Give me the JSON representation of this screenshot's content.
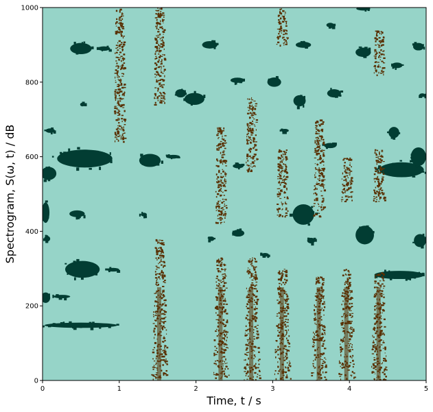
{
  "chart_data": {
    "type": "heatmap",
    "xlabel": "Time, t / s",
    "ylabel": "Spectrogram, S(ω, t) / dB",
    "xlim": [
      0,
      5
    ],
    "ylim": [
      0,
      1000
    ],
    "x_ticks": [
      {
        "value": 0,
        "label": "0"
      },
      {
        "value": 1,
        "label": "1"
      },
      {
        "value": 2,
        "label": "2"
      },
      {
        "value": 3,
        "label": "3"
      },
      {
        "value": 4,
        "label": "4"
      },
      {
        "value": 5,
        "label": "5"
      }
    ],
    "y_ticks": [
      {
        "value": 0,
        "label": "0"
      },
      {
        "value": 200,
        "label": "200"
      },
      {
        "value": 400,
        "label": "400"
      },
      {
        "value": 600,
        "label": "600"
      },
      {
        "value": 800,
        "label": "800"
      },
      {
        "value": 1000,
        "label": "1000"
      }
    ],
    "grid": false,
    "colors": {
      "background": "#96d4c8",
      "low": "#023d33",
      "high": "#593105"
    },
    "high_bands": [
      {
        "x": 1.0,
        "y0": 640,
        "y1": 1000
      },
      {
        "x": 1.52,
        "y0": 0,
        "y1": 380
      },
      {
        "x": 1.52,
        "y0": 740,
        "y1": 1000
      },
      {
        "x": 2.32,
        "y0": 0,
        "y1": 330
      },
      {
        "x": 2.32,
        "y0": 420,
        "y1": 680
      },
      {
        "x": 2.72,
        "y0": 0,
        "y1": 330
      },
      {
        "x": 2.72,
        "y0": 560,
        "y1": 760
      },
      {
        "x": 3.12,
        "y0": 0,
        "y1": 300
      },
      {
        "x": 3.12,
        "y0": 440,
        "y1": 620
      },
      {
        "x": 3.12,
        "y0": 900,
        "y1": 1000
      },
      {
        "x": 3.6,
        "y0": 0,
        "y1": 280
      },
      {
        "x": 3.6,
        "y0": 440,
        "y1": 700
      },
      {
        "x": 3.96,
        "y0": 0,
        "y1": 300
      },
      {
        "x": 3.96,
        "y0": 480,
        "y1": 600
      },
      {
        "x": 4.38,
        "y0": 0,
        "y1": 290
      },
      {
        "x": 4.38,
        "y0": 480,
        "y1": 620
      },
      {
        "x": 4.38,
        "y0": 820,
        "y1": 940
      }
    ],
    "low_blobs": [
      {
        "x": 0.5,
        "y": 148,
        "w": 0.95,
        "h": 14
      },
      {
        "x": 0.04,
        "y": 222,
        "w": 0.12,
        "h": 28
      },
      {
        "x": 0.25,
        "y": 225,
        "w": 0.22,
        "h": 8
      },
      {
        "x": 0.52,
        "y": 298,
        "w": 0.45,
        "h": 45
      },
      {
        "x": 0.92,
        "y": 297,
        "w": 0.16,
        "h": 10
      },
      {
        "x": 0.04,
        "y": 450,
        "w": 0.1,
        "h": 55
      },
      {
        "x": 0.45,
        "y": 447,
        "w": 0.2,
        "h": 18
      },
      {
        "x": 0.06,
        "y": 380,
        "w": 0.08,
        "h": 15
      },
      {
        "x": 0.55,
        "y": 595,
        "w": 0.72,
        "h": 48
      },
      {
        "x": 0.08,
        "y": 555,
        "w": 0.2,
        "h": 35
      },
      {
        "x": 0.1,
        "y": 670,
        "w": 0.12,
        "h": 12
      },
      {
        "x": 0.5,
        "y": 890,
        "w": 0.28,
        "h": 30
      },
      {
        "x": 0.8,
        "y": 890,
        "w": 0.16,
        "h": 12
      },
      {
        "x": 0.52,
        "y": 740,
        "w": 0.06,
        "h": 10
      },
      {
        "x": 1.4,
        "y": 590,
        "w": 0.28,
        "h": 35
      },
      {
        "x": 1.7,
        "y": 600,
        "w": 0.18,
        "h": 10
      },
      {
        "x": 1.32,
        "y": 445,
        "w": 0.08,
        "h": 10
      },
      {
        "x": 1.8,
        "y": 770,
        "w": 0.14,
        "h": 22
      },
      {
        "x": 1.98,
        "y": 755,
        "w": 0.26,
        "h": 32
      },
      {
        "x": 2.18,
        "y": 900,
        "w": 0.2,
        "h": 20
      },
      {
        "x": 2.54,
        "y": 805,
        "w": 0.18,
        "h": 14
      },
      {
        "x": 2.55,
        "y": 575,
        "w": 0.14,
        "h": 12
      },
      {
        "x": 2.55,
        "y": 395,
        "w": 0.16,
        "h": 18
      },
      {
        "x": 2.2,
        "y": 380,
        "w": 0.08,
        "h": 12
      },
      {
        "x": 2.9,
        "y": 337,
        "w": 0.1,
        "h": 10
      },
      {
        "x": 3.02,
        "y": 800,
        "w": 0.18,
        "h": 25
      },
      {
        "x": 3.35,
        "y": 750,
        "w": 0.16,
        "h": 30
      },
      {
        "x": 3.4,
        "y": 900,
        "w": 0.2,
        "h": 16
      },
      {
        "x": 3.16,
        "y": 670,
        "w": 0.1,
        "h": 8
      },
      {
        "x": 3.4,
        "y": 445,
        "w": 0.28,
        "h": 55
      },
      {
        "x": 3.5,
        "y": 375,
        "w": 0.1,
        "h": 15
      },
      {
        "x": 3.75,
        "y": 953,
        "w": 0.1,
        "h": 12
      },
      {
        "x": 3.8,
        "y": 770,
        "w": 0.18,
        "h": 22
      },
      {
        "x": 3.75,
        "y": 630,
        "w": 0.16,
        "h": 14
      },
      {
        "x": 4.2,
        "y": 390,
        "w": 0.24,
        "h": 50
      },
      {
        "x": 4.18,
        "y": 880,
        "w": 0.2,
        "h": 25
      },
      {
        "x": 4.62,
        "y": 845,
        "w": 0.14,
        "h": 15
      },
      {
        "x": 4.58,
        "y": 665,
        "w": 0.14,
        "h": 30
      },
      {
        "x": 4.68,
        "y": 565,
        "w": 0.58,
        "h": 40
      },
      {
        "x": 4.9,
        "y": 600,
        "w": 0.2,
        "h": 50
      },
      {
        "x": 4.65,
        "y": 283,
        "w": 0.65,
        "h": 22
      },
      {
        "x": 4.92,
        "y": 375,
        "w": 0.16,
        "h": 35
      },
      {
        "x": 4.9,
        "y": 895,
        "w": 0.14,
        "h": 20
      },
      {
        "x": 4.18,
        "y": 997,
        "w": 0.18,
        "h": 10
      },
      {
        "x": 4.95,
        "y": 765,
        "w": 0.08,
        "h": 10
      }
    ]
  }
}
